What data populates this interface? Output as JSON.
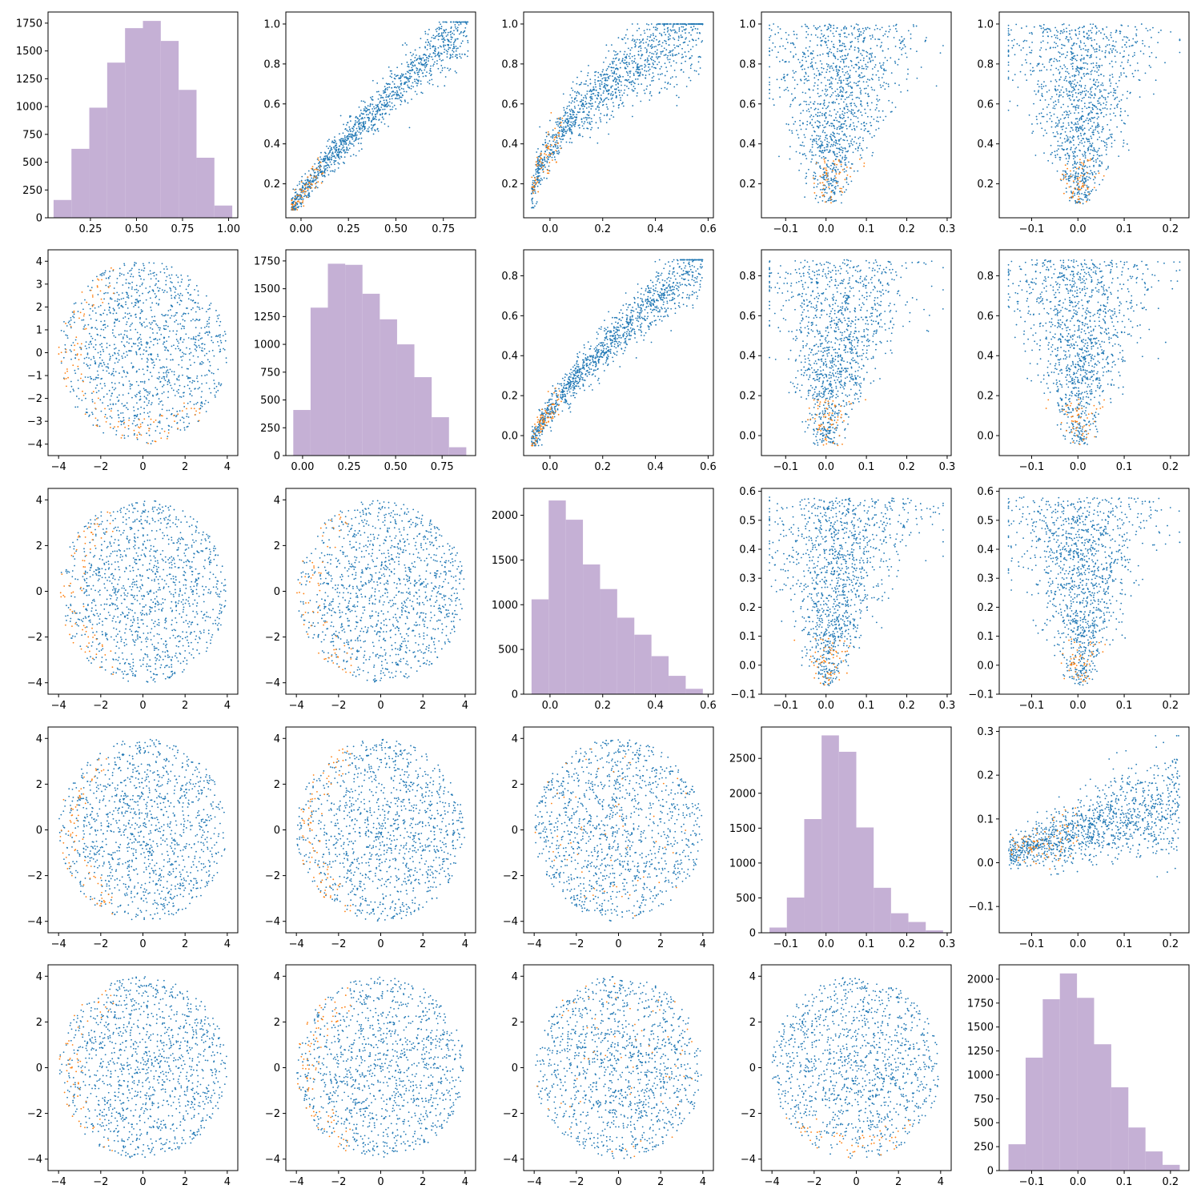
{
  "figure": {
    "layout": "5x5 pair grid",
    "point_colors": {
      "main": "#1f77b4",
      "highlight": "#ff7f0e"
    },
    "hist_color": "#c5b0d5"
  },
  "chart_data": [
    {
      "panel": "r0c0",
      "type": "bar",
      "xlim": [
        0.02,
        1.05
      ],
      "ylim": [
        0,
        1850
      ],
      "xticks": [
        0.25,
        0.5,
        0.75,
        1.0
      ],
      "xtick_labels": [
        "0.25",
        "0.50",
        "0.75",
        "1.00"
      ],
      "yticks": [
        0,
        250,
        500,
        750,
        1000,
        1250,
        1500,
        1750
      ],
      "ytick_labels": [
        "0",
        "250",
        "500",
        "750",
        "1000",
        "1250",
        "1500",
        "1750"
      ],
      "bin_edges": [
        0.05,
        0.147,
        0.244,
        0.341,
        0.438,
        0.535,
        0.632,
        0.729,
        0.826,
        0.923,
        1.02
      ],
      "values": [
        160,
        620,
        990,
        1395,
        1705,
        1770,
        1590,
        1150,
        540,
        110
      ]
    },
    {
      "panel": "r0c1",
      "type": "scatter",
      "xlim": [
        -0.08,
        0.92
      ],
      "ylim": [
        0.03,
        1.06
      ],
      "xticks": [
        0.0,
        0.25,
        0.5,
        0.75
      ],
      "xtick_labels": [
        "0.00",
        "0.25",
        "0.50",
        "0.75"
      ],
      "yticks": [
        0.2,
        0.4,
        0.6,
        0.8,
        1.0
      ],
      "ytick_labels": [
        "0.2",
        "0.4",
        "0.6",
        "0.8",
        "1.0"
      ],
      "shape": "monotone",
      "x_range": [
        -0.05,
        0.88
      ],
      "y_range": [
        0.07,
        1.01
      ],
      "power": 0.85,
      "spread": 0.05
    },
    {
      "panel": "r0c2",
      "type": "scatter",
      "xlim": [
        -0.1,
        0.62
      ],
      "ylim": [
        0.03,
        1.06
      ],
      "xticks": [
        0.0,
        0.2,
        0.4,
        0.6
      ],
      "xtick_labels": [
        "0.0",
        "0.2",
        "0.4",
        "0.6"
      ],
      "yticks": [
        0.2,
        0.4,
        0.6,
        0.8,
        1.0
      ],
      "ytick_labels": [
        "0.2",
        "0.4",
        "0.6",
        "0.8",
        "1.0"
      ],
      "shape": "monotone",
      "x_range": [
        -0.07,
        0.58
      ],
      "y_range": [
        0.08,
        1.0
      ],
      "power": 0.5,
      "spread": 0.08
    },
    {
      "panel": "r0c3",
      "type": "scatter",
      "xlim": [
        -0.16,
        0.31
      ],
      "ylim": [
        0.03,
        1.06
      ],
      "xticks": [
        -0.1,
        0.0,
        0.1,
        0.2,
        0.3
      ],
      "xtick_labels": [
        "−0.1",
        "0.0",
        "0.1",
        "0.2",
        "0.3"
      ],
      "yticks": [
        0.2,
        0.4,
        0.6,
        0.8,
        1.0
      ],
      "ytick_labels": [
        "0.2",
        "0.4",
        "0.6",
        "0.8",
        "1.0"
      ],
      "shape": "fan",
      "x_range": [
        -0.14,
        0.29
      ],
      "y_range": [
        0.1,
        1.0
      ],
      "skew_x": true
    },
    {
      "panel": "r0c4",
      "type": "scatter",
      "xlim": [
        -0.17,
        0.24
      ],
      "ylim": [
        0.03,
        1.06
      ],
      "xticks": [
        -0.1,
        0.0,
        0.1,
        0.2
      ],
      "xtick_labels": [
        "−0.1",
        "0.0",
        "0.1",
        "0.2"
      ],
      "yticks": [
        0.2,
        0.4,
        0.6,
        0.8,
        1.0
      ],
      "ytick_labels": [
        "0.2",
        "0.4",
        "0.6",
        "0.8",
        "1.0"
      ],
      "shape": "fan",
      "x_range": [
        -0.15,
        0.22
      ],
      "y_range": [
        0.1,
        1.0
      ],
      "skew_x": false
    },
    {
      "panel": "r1c0",
      "type": "scatter",
      "xlim": [
        -4.5,
        4.5
      ],
      "ylim": [
        -4.5,
        4.5
      ],
      "xticks": [
        -4,
        -2,
        0,
        2,
        4
      ],
      "xtick_labels": [
        "−4",
        "−2",
        "0",
        "2",
        "4"
      ],
      "yticks": [
        -4,
        -3,
        -2,
        -1,
        0,
        1,
        2,
        3,
        4
      ],
      "ytick_labels": [
        "−4",
        "−3",
        "−2",
        "−1",
        "0",
        "1",
        "2",
        "3",
        "4"
      ],
      "shape": "disk",
      "radius": 4.0,
      "orange_side": "bottom-left"
    },
    {
      "panel": "r1c1",
      "type": "bar",
      "xlim": [
        -0.09,
        0.93
      ],
      "ylim": [
        0,
        1850
      ],
      "xticks": [
        0.0,
        0.25,
        0.5,
        0.75
      ],
      "xtick_labels": [
        "0.00",
        "0.25",
        "0.50",
        "0.75"
      ],
      "yticks": [
        0,
        250,
        500,
        750,
        1000,
        1250,
        1500,
        1750
      ],
      "ytick_labels": [
        "0",
        "250",
        "500",
        "750",
        "1000",
        "1250",
        "1500",
        "1750"
      ],
      "bin_edges": [
        -0.05,
        0.043,
        0.136,
        0.229,
        0.322,
        0.415,
        0.508,
        0.601,
        0.694,
        0.787,
        0.88
      ],
      "values": [
        410,
        1330,
        1725,
        1715,
        1455,
        1225,
        1000,
        705,
        345,
        75
      ]
    },
    {
      "panel": "r1c2",
      "type": "scatter",
      "xlim": [
        -0.1,
        0.62
      ],
      "ylim": [
        -0.1,
        0.93
      ],
      "xticks": [
        0.0,
        0.2,
        0.4,
        0.6
      ],
      "xtick_labels": [
        "0.0",
        "0.2",
        "0.4",
        "0.6"
      ],
      "yticks": [
        0.0,
        0.2,
        0.4,
        0.6,
        0.8
      ],
      "ytick_labels": [
        "0.0",
        "0.2",
        "0.4",
        "0.6",
        "0.8"
      ],
      "shape": "monotone",
      "x_range": [
        -0.07,
        0.58
      ],
      "y_range": [
        -0.05,
        0.88
      ],
      "power": 0.75,
      "spread": 0.055
    },
    {
      "panel": "r1c3",
      "type": "scatter",
      "xlim": [
        -0.16,
        0.31
      ],
      "ylim": [
        -0.1,
        0.93
      ],
      "xticks": [
        -0.1,
        0.0,
        0.1,
        0.2,
        0.3
      ],
      "xtick_labels": [
        "−0.1",
        "0.0",
        "0.1",
        "0.2",
        "0.3"
      ],
      "yticks": [
        0.0,
        0.2,
        0.4,
        0.6,
        0.8
      ],
      "ytick_labels": [
        "0.0",
        "0.2",
        "0.4",
        "0.6",
        "0.8"
      ],
      "shape": "fan",
      "x_range": [
        -0.14,
        0.29
      ],
      "y_range": [
        -0.05,
        0.88
      ],
      "skew_x": true
    },
    {
      "panel": "r1c4",
      "type": "scatter",
      "xlim": [
        -0.17,
        0.24
      ],
      "ylim": [
        -0.1,
        0.93
      ],
      "xticks": [
        -0.1,
        0.0,
        0.1,
        0.2
      ],
      "xtick_labels": [
        "−0.1",
        "0.0",
        "0.1",
        "0.2"
      ],
      "yticks": [
        0.0,
        0.2,
        0.4,
        0.6,
        0.8
      ],
      "ytick_labels": [
        "0.0",
        "0.2",
        "0.4",
        "0.6",
        "0.8"
      ],
      "shape": "fan",
      "x_range": [
        -0.15,
        0.22
      ],
      "y_range": [
        -0.05,
        0.88
      ],
      "skew_x": false
    },
    {
      "panel": "r2c0",
      "type": "scatter",
      "xlim": [
        -4.5,
        4.5
      ],
      "ylim": [
        -4.5,
        4.5
      ],
      "xticks": [
        -4,
        -2,
        0,
        2,
        4
      ],
      "xtick_labels": [
        "−4",
        "−2",
        "0",
        "2",
        "4"
      ],
      "yticks": [
        -4,
        -2,
        0,
        2,
        4
      ],
      "ytick_labels": [
        "−4",
        "−2",
        "0",
        "2",
        "4"
      ],
      "shape": "disk",
      "radius": 4.0,
      "orange_side": "left"
    },
    {
      "panel": "r2c1",
      "type": "scatter",
      "xlim": [
        -4.5,
        4.5
      ],
      "ylim": [
        -4.5,
        4.5
      ],
      "xticks": [
        -4,
        -2,
        0,
        2,
        4
      ],
      "xtick_labels": [
        "−4",
        "−2",
        "0",
        "2",
        "4"
      ],
      "yticks": [
        -4,
        -2,
        0,
        2,
        4
      ],
      "ytick_labels": [
        "−4",
        "−2",
        "0",
        "2",
        "4"
      ],
      "shape": "disk",
      "radius": 4.0,
      "orange_side": "left"
    },
    {
      "panel": "r2c2",
      "type": "bar",
      "xlim": [
        -0.1,
        0.62
      ],
      "ylim": [
        0,
        2300
      ],
      "xticks": [
        0.0,
        0.2,
        0.4,
        0.6
      ],
      "xtick_labels": [
        "0.0",
        "0.2",
        "0.4",
        "0.6"
      ],
      "yticks": [
        0,
        500,
        1000,
        1500,
        2000
      ],
      "ytick_labels": [
        "0",
        "500",
        "1000",
        "1500",
        "2000"
      ],
      "bin_edges": [
        -0.07,
        -0.005,
        0.06,
        0.125,
        0.19,
        0.255,
        0.32,
        0.385,
        0.45,
        0.515,
        0.58
      ],
      "values": [
        1060,
        2165,
        1950,
        1450,
        1175,
        855,
        665,
        425,
        205,
        60
      ]
    },
    {
      "panel": "r2c3",
      "type": "scatter",
      "xlim": [
        -0.16,
        0.31
      ],
      "ylim": [
        -0.1,
        0.61
      ],
      "xticks": [
        -0.1,
        0.0,
        0.1,
        0.2,
        0.3
      ],
      "xtick_labels": [
        "−0.1",
        "0.0",
        "0.1",
        "0.2",
        "0.3"
      ],
      "yticks": [
        -0.1,
        0.0,
        0.1,
        0.2,
        0.3,
        0.4,
        0.5,
        0.6
      ],
      "ytick_labels": [
        "−0.1",
        "0.0",
        "0.1",
        "0.2",
        "0.3",
        "0.4",
        "0.5",
        "0.6"
      ],
      "shape": "fan",
      "x_range": [
        -0.14,
        0.29
      ],
      "y_range": [
        -0.07,
        0.58
      ],
      "skew_x": true
    },
    {
      "panel": "r2c4",
      "type": "scatter",
      "xlim": [
        -0.17,
        0.24
      ],
      "ylim": [
        -0.1,
        0.61
      ],
      "xticks": [
        -0.1,
        0.0,
        0.1,
        0.2
      ],
      "xtick_labels": [
        "−0.1",
        "0.0",
        "0.1",
        "0.2"
      ],
      "yticks": [
        -0.1,
        0.0,
        0.1,
        0.2,
        0.3,
        0.4,
        0.5,
        0.6
      ],
      "ytick_labels": [
        "−0.1",
        "0.0",
        "0.1",
        "0.2",
        "0.3",
        "0.4",
        "0.5",
        "0.6"
      ],
      "shape": "fan",
      "x_range": [
        -0.15,
        0.22
      ],
      "y_range": [
        -0.07,
        0.58
      ],
      "skew_x": false
    },
    {
      "panel": "r3c0",
      "type": "scatter",
      "xlim": [
        -4.5,
        4.5
      ],
      "ylim": [
        -4.5,
        4.5
      ],
      "xticks": [
        -4,
        -2,
        0,
        2,
        4
      ],
      "xtick_labels": [
        "−4",
        "−2",
        "0",
        "2",
        "4"
      ],
      "yticks": [
        -4,
        -2,
        0,
        2,
        4
      ],
      "ytick_labels": [
        "−4",
        "−2",
        "0",
        "2",
        "4"
      ],
      "shape": "disk",
      "radius": 4.0,
      "orange_side": "left"
    },
    {
      "panel": "r3c1",
      "type": "scatter",
      "xlim": [
        -4.5,
        4.5
      ],
      "ylim": [
        -4.5,
        4.5
      ],
      "xticks": [
        -4,
        -2,
        0,
        2,
        4
      ],
      "xtick_labels": [
        "−4",
        "−2",
        "0",
        "2",
        "4"
      ],
      "yticks": [
        -4,
        -2,
        0,
        2,
        4
      ],
      "ytick_labels": [
        "−4",
        "−2",
        "0",
        "2",
        "4"
      ],
      "shape": "disk",
      "radius": 4.0,
      "orange_side": "left"
    },
    {
      "panel": "r3c2",
      "type": "scatter",
      "xlim": [
        -4.5,
        4.5
      ],
      "ylim": [
        -4.5,
        4.5
      ],
      "xticks": [
        -4,
        -2,
        0,
        2,
        4
      ],
      "xtick_labels": [
        "−4",
        "−2",
        "0",
        "2",
        "4"
      ],
      "yticks": [
        -4,
        -2,
        0,
        2,
        4
      ],
      "ytick_labels": [
        "−4",
        "−2",
        "0",
        "2",
        "4"
      ],
      "shape": "disk",
      "radius": 4.0,
      "orange_side": "scattered"
    },
    {
      "panel": "r3c3",
      "type": "bar",
      "xlim": [
        -0.16,
        0.31
      ],
      "ylim": [
        0,
        2950
      ],
      "xticks": [
        -0.1,
        0.0,
        0.1,
        0.2,
        0.3
      ],
      "xtick_labels": [
        "−0.1",
        "0.0",
        "0.1",
        "0.2",
        "0.3"
      ],
      "yticks": [
        0,
        500,
        1000,
        1500,
        2000,
        2500
      ],
      "ytick_labels": [
        "0",
        "500",
        "1000",
        "1500",
        "2000",
        "2500"
      ],
      "bin_edges": [
        -0.14,
        -0.097,
        -0.054,
        -0.011,
        0.032,
        0.075,
        0.118,
        0.161,
        0.204,
        0.247,
        0.29
      ],
      "values": [
        75,
        505,
        1630,
        2830,
        2595,
        1510,
        645,
        280,
        155,
        35
      ]
    },
    {
      "panel": "r3c4",
      "type": "scatter",
      "xlim": [
        -0.17,
        0.24
      ],
      "ylim": [
        -0.16,
        0.31
      ],
      "xticks": [
        -0.1,
        0.0,
        0.1,
        0.2
      ],
      "xtick_labels": [
        "−0.1",
        "0.0",
        "0.1",
        "0.2"
      ],
      "yticks": [
        -0.1,
        0.0,
        0.1,
        0.2,
        0.3
      ],
      "ytick_labels": [
        "−0.1",
        "0.0",
        "0.1",
        "0.2",
        "0.3"
      ],
      "shape": "wedge",
      "x_range": [
        -0.15,
        0.22
      ],
      "y_range": [
        -0.14,
        0.29
      ]
    },
    {
      "panel": "r4c0",
      "type": "scatter",
      "xlim": [
        -4.5,
        4.5
      ],
      "ylim": [
        -4.5,
        4.5
      ],
      "xticks": [
        -4,
        -2,
        0,
        2,
        4
      ],
      "xtick_labels": [
        "−4",
        "−2",
        "0",
        "2",
        "4"
      ],
      "yticks": [
        -4,
        -2,
        0,
        2,
        4
      ],
      "ytick_labels": [
        "−4",
        "−2",
        "0",
        "2",
        "4"
      ],
      "shape": "disk",
      "radius": 4.0,
      "orange_side": "left"
    },
    {
      "panel": "r4c1",
      "type": "scatter",
      "xlim": [
        -4.5,
        4.5
      ],
      "ylim": [
        -4.5,
        4.5
      ],
      "xticks": [
        -4,
        -2,
        0,
        2,
        4
      ],
      "xtick_labels": [
        "−4",
        "−2",
        "0",
        "2",
        "4"
      ],
      "yticks": [
        -4,
        -2,
        0,
        2,
        4
      ],
      "ytick_labels": [
        "−4",
        "−2",
        "0",
        "2",
        "4"
      ],
      "shape": "disk",
      "radius": 4.0,
      "orange_side": "left"
    },
    {
      "panel": "r4c2",
      "type": "scatter",
      "xlim": [
        -4.5,
        4.5
      ],
      "ylim": [
        -4.5,
        4.5
      ],
      "xticks": [
        -4,
        -2,
        0,
        2,
        4
      ],
      "xtick_labels": [
        "−4",
        "−2",
        "0",
        "2",
        "4"
      ],
      "yticks": [
        -4,
        -2,
        0,
        2,
        4
      ],
      "ytick_labels": [
        "−4",
        "−2",
        "0",
        "2",
        "4"
      ],
      "shape": "disk",
      "radius": 4.0,
      "orange_side": "scattered"
    },
    {
      "panel": "r4c3",
      "type": "scatter",
      "xlim": [
        -4.5,
        4.5
      ],
      "ylim": [
        -4.5,
        4.5
      ],
      "xticks": [
        -4,
        -2,
        0,
        2,
        4
      ],
      "xtick_labels": [
        "−4",
        "−2",
        "0",
        "2",
        "4"
      ],
      "yticks": [
        -4,
        -2,
        0,
        2,
        4
      ],
      "ytick_labels": [
        "−4",
        "−2",
        "0",
        "2",
        "4"
      ],
      "shape": "disk",
      "radius": 4.0,
      "orange_side": "bottom"
    },
    {
      "panel": "r4c4",
      "type": "bar",
      "xlim": [
        -0.17,
        0.24
      ],
      "ylim": [
        0,
        2150
      ],
      "xticks": [
        -0.1,
        0.0,
        0.1,
        0.2
      ],
      "xtick_labels": [
        "−0.1",
        "0.0",
        "0.1",
        "0.2"
      ],
      "yticks": [
        0,
        250,
        500,
        750,
        1000,
        1250,
        1500,
        1750,
        2000
      ],
      "ytick_labels": [
        "0",
        "250",
        "500",
        "750",
        "1000",
        "1250",
        "1500",
        "1750",
        "2000"
      ],
      "bin_edges": [
        -0.15,
        -0.113,
        -0.076,
        -0.039,
        -0.002,
        0.035,
        0.072,
        0.109,
        0.146,
        0.183,
        0.22
      ],
      "values": [
        275,
        1180,
        1790,
        2060,
        1805,
        1320,
        870,
        450,
        200,
        60
      ]
    }
  ]
}
